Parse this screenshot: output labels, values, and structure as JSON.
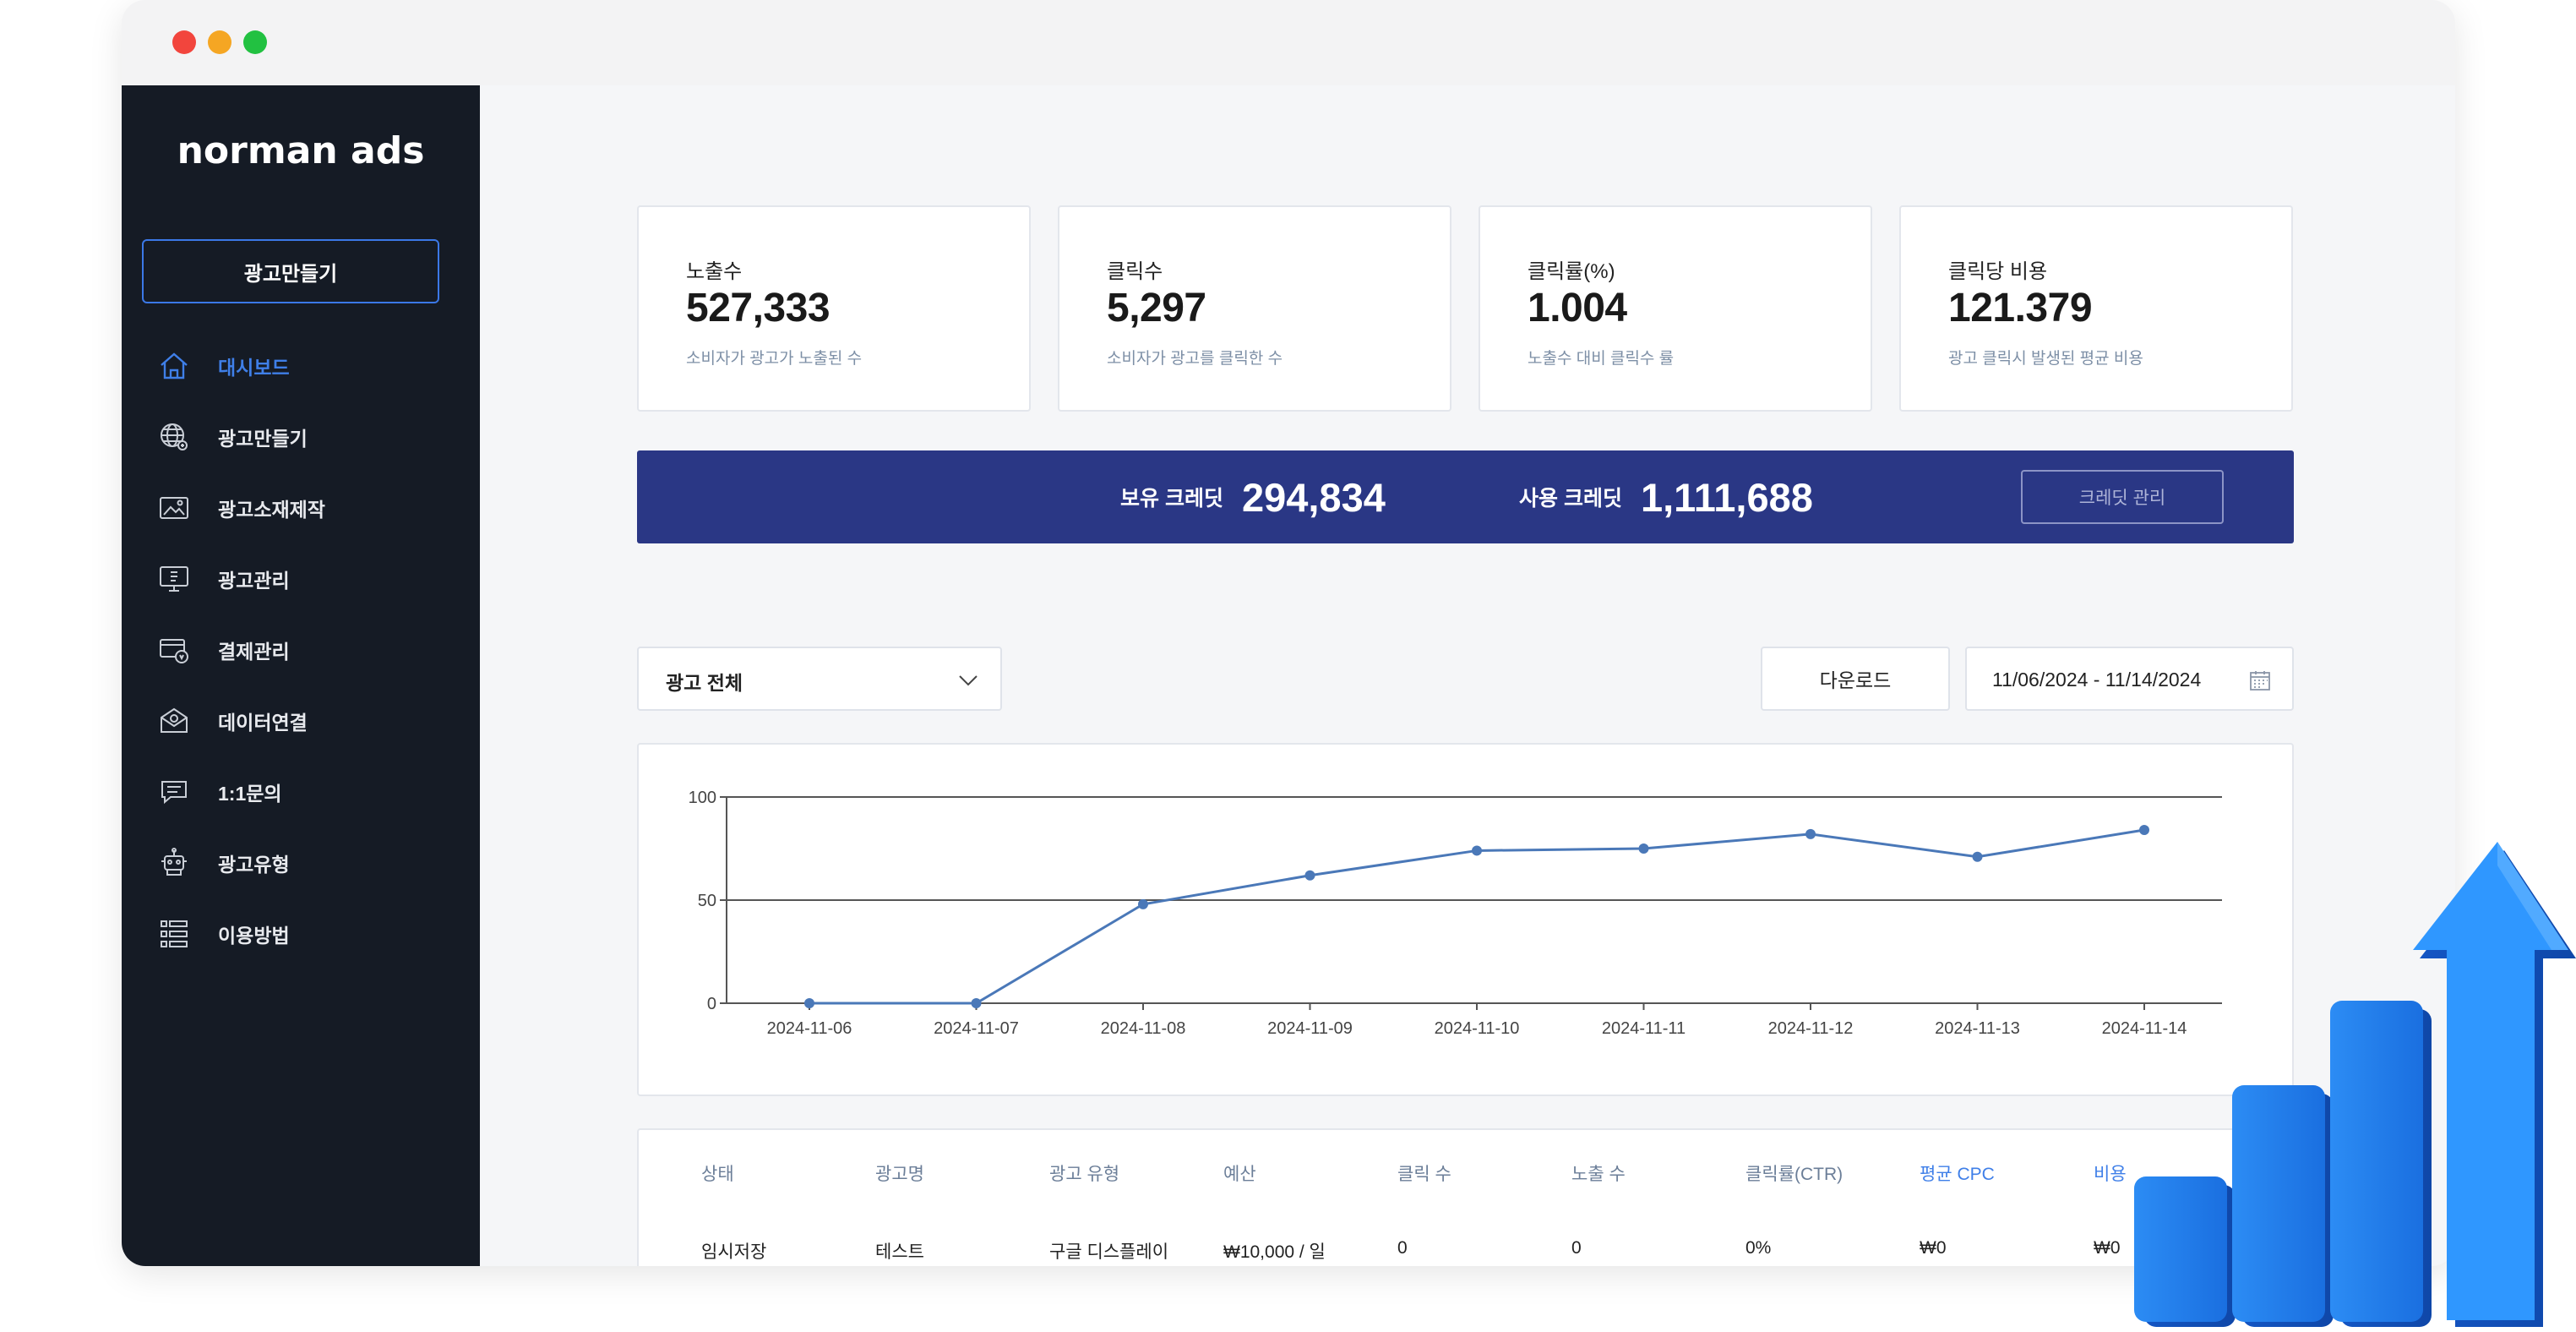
{
  "brand": {
    "logo": "norman ads"
  },
  "sidebar": {
    "create_button": "광고만들기",
    "items": [
      {
        "label": "대시보드",
        "icon": "home-icon",
        "active": true
      },
      {
        "label": "광고만들기",
        "icon": "globe-icon",
        "active": false
      },
      {
        "label": "광고소재제작",
        "icon": "image-icon",
        "active": false
      },
      {
        "label": "광고관리",
        "icon": "monitor-icon",
        "active": false
      },
      {
        "label": "결제관리",
        "icon": "payment-icon",
        "active": false
      },
      {
        "label": "데이터연결",
        "icon": "mail-icon",
        "active": false
      },
      {
        "label": "1:1문의",
        "icon": "chat-icon",
        "active": false
      },
      {
        "label": "광고유형",
        "icon": "robot-icon",
        "active": false
      },
      {
        "label": "이용방법",
        "icon": "list-icon",
        "active": false
      }
    ]
  },
  "stats": [
    {
      "title": "노출수",
      "value": "527,333",
      "desc": "소비자가 광고가 노출된 수"
    },
    {
      "title": "클릭수",
      "value": "5,297",
      "desc": "소비자가 광고를 클릭한 수"
    },
    {
      "title": "클릭률(%)",
      "value": "1.004",
      "desc": "노출수 대비 클릭수 률"
    },
    {
      "title": "클릭당 비용",
      "value": "121.379",
      "desc": "광고 클릭시 발생된 평균 비용"
    }
  ],
  "credit": {
    "held_label": "보유 크레딧",
    "held_value": "294,834",
    "used_label": "사용 크레딧",
    "used_value": "1,111,688",
    "manage_button": "크레딧 관리"
  },
  "filters": {
    "ad_select": "광고 전체",
    "download_button": "다운로드",
    "date_range": "11/06/2024 - 11/14/2024"
  },
  "chart_data": {
    "type": "line",
    "x": [
      "2024-11-06",
      "2024-11-07",
      "2024-11-08",
      "2024-11-09",
      "2024-11-10",
      "2024-11-11",
      "2024-11-12",
      "2024-11-13",
      "2024-11-14"
    ],
    "series": [
      {
        "values": [
          0,
          0,
          48,
          62,
          74,
          75,
          82,
          71,
          84
        ]
      }
    ],
    "ylim": [
      0,
      100
    ],
    "yticks": [
      0,
      50,
      100
    ],
    "grid": true,
    "color": "#4a78b8"
  },
  "table": {
    "headers": [
      "상태",
      "광고명",
      "광고 유형",
      "예산",
      "클릭 수",
      "노출 수",
      "클릭률(CTR)",
      "평균 CPC",
      "비용"
    ],
    "rows": [
      [
        "임시저장",
        "테스트",
        "구글 디스플레이",
        "₩10,000 / 일",
        "0",
        "0",
        "0%",
        "₩0",
        "₩0"
      ]
    ]
  },
  "colors": {
    "sidebar_bg": "#151b25",
    "accent": "#3f7fe8",
    "credit_bar": "#2a3785",
    "window_dots": [
      "#f2453d",
      "#f5a623",
      "#22c141"
    ]
  }
}
